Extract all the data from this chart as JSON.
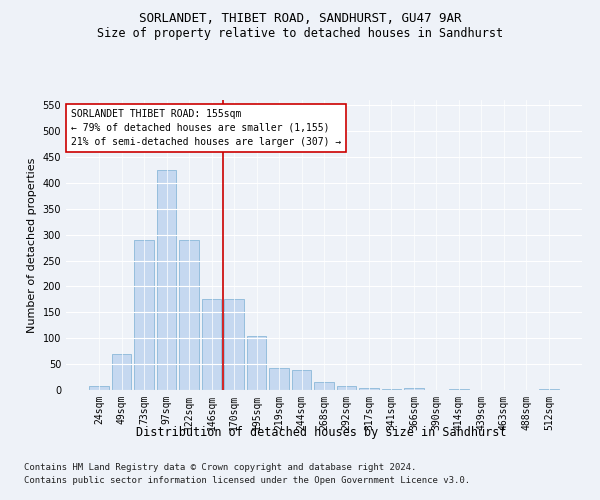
{
  "title": "SORLANDET, THIBET ROAD, SANDHURST, GU47 9AR",
  "subtitle": "Size of property relative to detached houses in Sandhurst",
  "xlabel": "Distribution of detached houses by size in Sandhurst",
  "ylabel": "Number of detached properties",
  "categories": [
    "24sqm",
    "49sqm",
    "73sqm",
    "97sqm",
    "122sqm",
    "146sqm",
    "170sqm",
    "195sqm",
    "219sqm",
    "244sqm",
    "268sqm",
    "292sqm",
    "317sqm",
    "341sqm",
    "366sqm",
    "390sqm",
    "414sqm",
    "439sqm",
    "463sqm",
    "488sqm",
    "512sqm"
  ],
  "values": [
    8,
    70,
    290,
    425,
    290,
    175,
    175,
    105,
    43,
    38,
    15,
    8,
    4,
    2,
    3,
    0,
    2,
    0,
    0,
    0,
    2
  ],
  "bar_color": "#c5d8f0",
  "bar_edge_color": "#7bafd4",
  "vline_x_index": 5.5,
  "vline_color": "#cc0000",
  "annotation_text": "SORLANDET THIBET ROAD: 155sqm\n← 79% of detached houses are smaller (1,155)\n21% of semi-detached houses are larger (307) →",
  "annotation_box_color": "#ffffff",
  "annotation_box_edge": "#cc0000",
  "ylim": [
    0,
    560
  ],
  "yticks": [
    0,
    50,
    100,
    150,
    200,
    250,
    300,
    350,
    400,
    450,
    500,
    550
  ],
  "footer1": "Contains HM Land Registry data © Crown copyright and database right 2024.",
  "footer2": "Contains public sector information licensed under the Open Government Licence v3.0.",
  "bg_color": "#eef2f8",
  "plot_bg_color": "#eef2f8",
  "title_fontsize": 9,
  "subtitle_fontsize": 8.5,
  "ylabel_fontsize": 8,
  "xlabel_fontsize": 8.5,
  "tick_fontsize": 7,
  "annotation_fontsize": 7,
  "footer_fontsize": 6.5
}
